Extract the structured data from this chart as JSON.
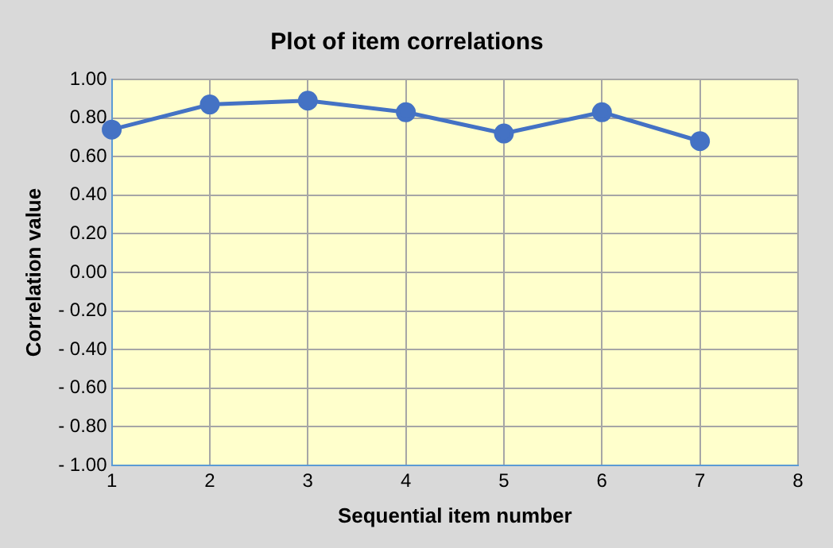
{
  "chart_data": {
    "type": "line",
    "title": "Plot of item correlations",
    "xlabel": "Sequential item number",
    "ylabel": "Correlation value",
    "x": [
      1,
      2,
      3,
      4,
      5,
      6,
      7
    ],
    "series": [
      {
        "color": "#4472c4",
        "values": [
          0.74,
          0.87,
          0.89,
          0.83,
          0.72,
          0.83,
          0.68
        ]
      }
    ],
    "xlim": [
      1,
      8
    ],
    "xticks": [
      1,
      2,
      3,
      4,
      5,
      6,
      7,
      8
    ],
    "ylim": [
      -1,
      1
    ],
    "yticks": [
      {
        "value": -1,
        "label": "- 1.00"
      },
      {
        "value": -0.8,
        "label": "- 0.80"
      },
      {
        "value": -0.6,
        "label": "- 0.60"
      },
      {
        "value": -0.4,
        "label": "- 0.40"
      },
      {
        "value": -0.2,
        "label": "- 0.20"
      },
      {
        "value": 0,
        "label": "0.00"
      },
      {
        "value": 0.2,
        "label": "0.20"
      },
      {
        "value": 0.4,
        "label": "0.40"
      },
      {
        "value": 0.6,
        "label": "0.60"
      },
      {
        "value": 0.8,
        "label": "0.80"
      },
      {
        "value": 1,
        "label": "1.00"
      }
    ],
    "grid": true,
    "legend": false,
    "marker": "circle",
    "line_style": "solid"
  }
}
